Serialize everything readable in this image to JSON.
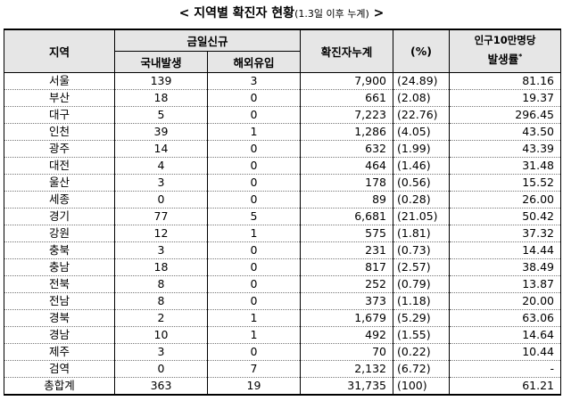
{
  "title": {
    "main": "< 지역별 확진자 현황",
    "sub": "(1.3일 이후 누계)",
    "end": " >"
  },
  "header": {
    "region": "지역",
    "new_cases": "금일신규",
    "domestic": "국내발생",
    "overseas": "해외유입",
    "cumulative": "확진자누계",
    "percent": "(%)",
    "rate_line1": "인구10만명당",
    "rate_line2": "발생률",
    "rate_mark": "*"
  },
  "rows": [
    {
      "region": "서울",
      "domestic": "139",
      "overseas": "3",
      "cumulative": "7,900",
      "percent": "(24.89)",
      "rate": "81.16"
    },
    {
      "region": "부산",
      "domestic": "18",
      "overseas": "0",
      "cumulative": "661",
      "percent": "(2.08)",
      "rate": "19.37"
    },
    {
      "region": "대구",
      "domestic": "5",
      "overseas": "0",
      "cumulative": "7,223",
      "percent": "(22.76)",
      "rate": "296.45"
    },
    {
      "region": "인천",
      "domestic": "39",
      "overseas": "1",
      "cumulative": "1,286",
      "percent": "(4.05)",
      "rate": "43.50"
    },
    {
      "region": "광주",
      "domestic": "14",
      "overseas": "0",
      "cumulative": "632",
      "percent": "(1.99)",
      "rate": "43.39"
    },
    {
      "region": "대전",
      "domestic": "4",
      "overseas": "0",
      "cumulative": "464",
      "percent": "(1.46)",
      "rate": "31.48"
    },
    {
      "region": "울산",
      "domestic": "3",
      "overseas": "0",
      "cumulative": "178",
      "percent": "(0.56)",
      "rate": "15.52"
    },
    {
      "region": "세종",
      "domestic": "0",
      "overseas": "0",
      "cumulative": "89",
      "percent": "(0.28)",
      "rate": "26.00"
    },
    {
      "region": "경기",
      "domestic": "77",
      "overseas": "5",
      "cumulative": "6,681",
      "percent": "(21.05)",
      "rate": "50.42"
    },
    {
      "region": "강원",
      "domestic": "12",
      "overseas": "1",
      "cumulative": "575",
      "percent": "(1.81)",
      "rate": "37.32"
    },
    {
      "region": "충북",
      "domestic": "3",
      "overseas": "0",
      "cumulative": "231",
      "percent": "(0.73)",
      "rate": "14.44"
    },
    {
      "region": "충남",
      "domestic": "18",
      "overseas": "0",
      "cumulative": "817",
      "percent": "(2.57)",
      "rate": "38.49"
    },
    {
      "region": "전북",
      "domestic": "8",
      "overseas": "0",
      "cumulative": "252",
      "percent": "(0.79)",
      "rate": "13.87"
    },
    {
      "region": "전남",
      "domestic": "8",
      "overseas": "0",
      "cumulative": "373",
      "percent": "(1.18)",
      "rate": "20.00"
    },
    {
      "region": "경북",
      "domestic": "2",
      "overseas": "1",
      "cumulative": "1,679",
      "percent": "(5.29)",
      "rate": "63.06"
    },
    {
      "region": "경남",
      "domestic": "10",
      "overseas": "1",
      "cumulative": "492",
      "percent": "(1.55)",
      "rate": "14.64"
    },
    {
      "region": "제주",
      "domestic": "3",
      "overseas": "0",
      "cumulative": "70",
      "percent": "(0.22)",
      "rate": "10.44"
    },
    {
      "region": "검역",
      "domestic": "0",
      "overseas": "7",
      "cumulative": "2,132",
      "percent": "(6.72)",
      "rate": "-"
    },
    {
      "region": "총합계",
      "domestic": "363",
      "overseas": "19",
      "cumulative": "31,735",
      "percent": "(100)",
      "rate": "61.21"
    }
  ]
}
